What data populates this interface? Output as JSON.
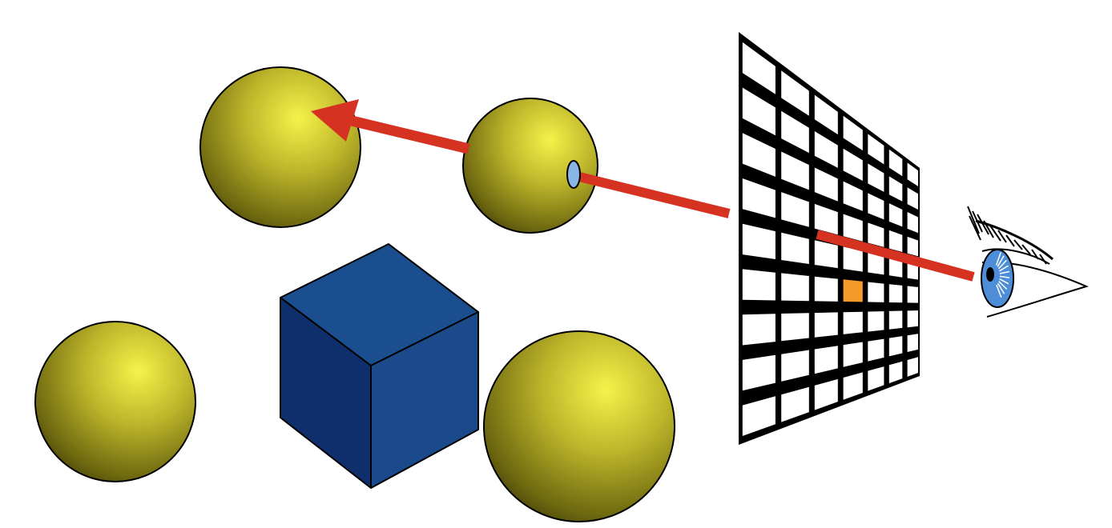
{
  "colors": {
    "background": "#ffffff",
    "sphere_highlight": "#f4f048",
    "sphere_mid": "#a09a1c",
    "sphere_shadow": "#141200",
    "cube_front": "#0f2f6c",
    "cube_right": "#1a4a8c",
    "cube_top": "#1b4e8e",
    "ray": "#d63222",
    "grid": "#000000",
    "grid_cell": "#ffffff",
    "highlighted_pixel": "#f79a2c",
    "iris": "#4e8ed8",
    "pupil": "#000000",
    "hit_point": "#8ab6e6"
  },
  "icons": {
    "eye": "eye-icon",
    "ray_arrow": "arrow-icon"
  },
  "scene": {
    "objects": [
      "sphere",
      "sphere",
      "sphere",
      "sphere",
      "cube"
    ],
    "image_plane": {
      "columns": 7,
      "rows": 9,
      "highlighted_cell": {
        "column": 3,
        "row": 5
      }
    }
  }
}
